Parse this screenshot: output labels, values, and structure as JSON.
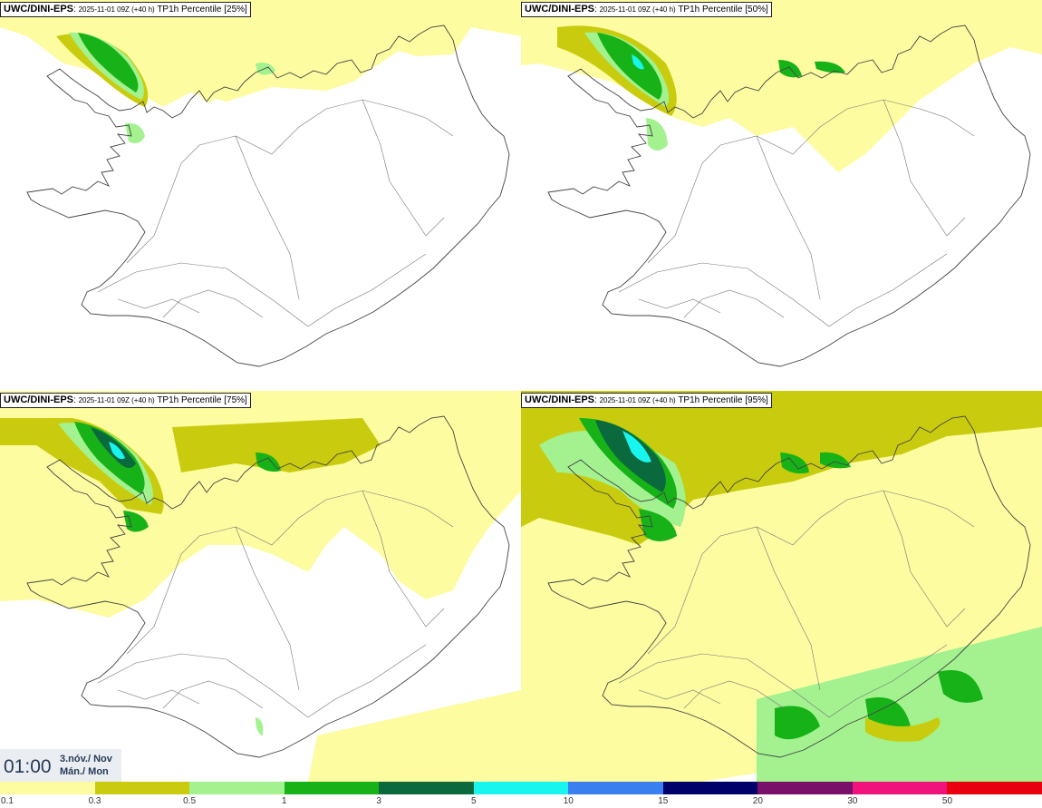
{
  "panels": [
    {
      "model": "UWC/DINI-EPS",
      "run": "2025-11-01 09Z (+40 h)",
      "param": "TP1h Percentile [25%]"
    },
    {
      "model": "UWC/DINI-EPS",
      "run": "2025-11-01 09Z (+40 h)",
      "param": "TP1h Percentile [50%]"
    },
    {
      "model": "UWC/DINI-EPS",
      "run": "2025-11-01 09Z (+40 h)",
      "param": "TP1h Percentile [75%]"
    },
    {
      "model": "UWC/DINI-EPS",
      "run": "2025-11-01 09Z (+40 h)",
      "param": "TP1h Percentile [95%]"
    }
  ],
  "valid_time": {
    "time": "01:00",
    "date_line1": "3.nóv./ Nov",
    "date_line2": "Mán./ Mon"
  },
  "legend": {
    "colors": [
      "#fdfca0",
      "#c9cc0e",
      "#a3f28f",
      "#16b218",
      "#0a6a3e",
      "#17f5ee",
      "#3a7ff0",
      "#00006a",
      "#7a0f69",
      "#f0137c",
      "#e8000e"
    ],
    "labels": [
      "0.1",
      "0.3",
      "0.5",
      "1",
      "3",
      "5",
      "10",
      "15",
      "20",
      "30",
      "50"
    ]
  }
}
